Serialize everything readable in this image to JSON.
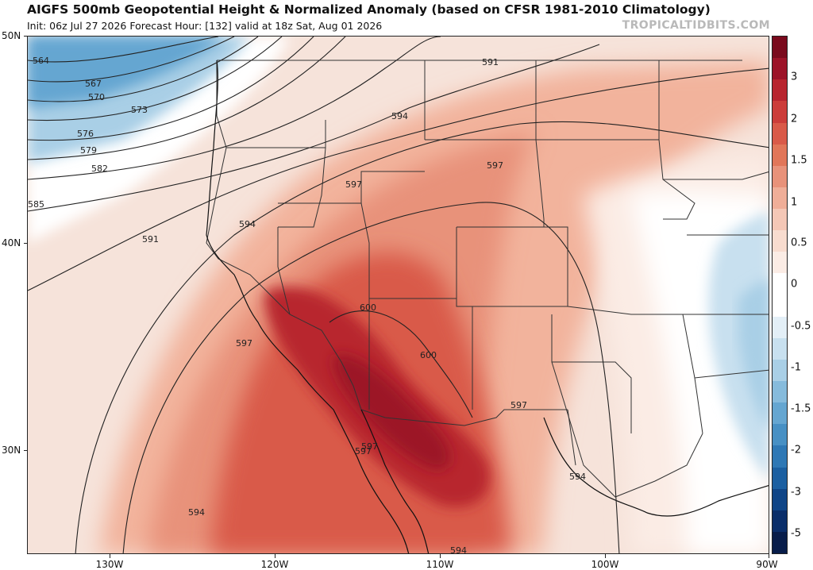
{
  "header": {
    "title": "AIGFS 500mb Geopotential Height & Normalized Anomaly (based on CFSR 1981-2010 Climatology)",
    "subtitle": "Init: 06z Jul 27 2026   Forecast Hour: [132]   valid at 18z Sat, Aug 01 2026",
    "brand": "TROPICALTIDBITS.COM"
  },
  "map": {
    "lat_labels": [
      "50N",
      "40N",
      "30N"
    ],
    "lon_labels": [
      "130W",
      "120W",
      "110W",
      "100W",
      "90W"
    ]
  },
  "colorbar": {
    "labels": [
      "3",
      "2",
      "1.5",
      "1",
      "0.5",
      "0",
      "-0.5",
      "-1",
      "-1.5",
      "-2",
      "-3",
      "-5"
    ],
    "colors": [
      "#7a0a1d",
      "#9c1328",
      "#b8252f",
      "#cc3d3a",
      "#d95a49",
      "#e17659",
      "#e8927a",
      "#efae98",
      "#f4c7b6",
      "#f8dccf",
      "#fbece5",
      "#ffffff",
      "#ffffff",
      "#e3eff7",
      "#c8e0ef",
      "#a9cfe6",
      "#86bbdc",
      "#65a6d1",
      "#4790c4",
      "#2e78b5",
      "#1b5fa1",
      "#0f4587",
      "#0a2e6a",
      "#081d4a"
    ]
  },
  "contours": {
    "labels": [
      "564",
      "567",
      "570",
      "573",
      "576",
      "579",
      "582",
      "585",
      "591",
      "594",
      "597",
      "600",
      "600",
      "597",
      "597",
      "594",
      "594",
      "594",
      "591",
      "594",
      "597",
      "597",
      "597"
    ]
  }
}
